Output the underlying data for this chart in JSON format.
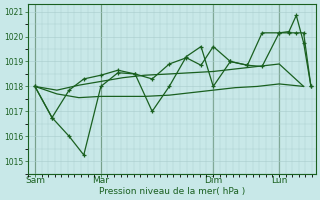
{
  "bg_color": "#c8e8e8",
  "grid_color": "#a8cccc",
  "line_color": "#1a6020",
  "xlabel": "Pression niveau de la mer( hPa )",
  "ylim": [
    1014.5,
    1021.3
  ],
  "yticks": [
    1015,
    1016,
    1017,
    1018,
    1019,
    1020,
    1021
  ],
  "day_labels": [
    "Sam",
    "Mar",
    "Dim",
    "Lun"
  ],
  "day_positions": [
    0,
    0.27,
    0.73,
    1.0
  ],
  "xmin": -0.03,
  "xmax": 1.15,
  "line1_x": [
    0.0,
    0.09,
    0.18,
    0.27,
    0.36,
    0.45,
    0.55,
    0.64,
    0.73,
    0.82,
    0.91,
    1.0,
    1.1
  ],
  "line1_y": [
    1018.0,
    1017.7,
    1017.55,
    1017.6,
    1017.6,
    1017.6,
    1017.65,
    1017.75,
    1017.85,
    1017.95,
    1018.0,
    1018.1,
    1018.0
  ],
  "line2_x": [
    0.0,
    0.09,
    0.18,
    0.27,
    0.36,
    0.45,
    0.55,
    0.64,
    0.73,
    0.82,
    0.91,
    1.0,
    1.1
  ],
  "line2_y": [
    1018.0,
    1017.85,
    1018.05,
    1018.2,
    1018.35,
    1018.45,
    1018.5,
    1018.55,
    1018.6,
    1018.7,
    1018.8,
    1018.9,
    1018.0
  ],
  "series3_x": [
    0.0,
    0.07,
    0.14,
    0.2,
    0.27,
    0.34,
    0.41,
    0.48,
    0.55,
    0.62,
    0.68,
    0.73,
    0.8,
    0.87,
    0.93,
    1.0,
    1.04,
    1.07,
    1.1,
    1.13
  ],
  "series3_y": [
    1018.0,
    1016.75,
    1016.0,
    1015.25,
    1018.0,
    1018.55,
    1018.5,
    1017.0,
    1018.0,
    1019.2,
    1019.6,
    1018.0,
    1019.0,
    1018.85,
    1020.15,
    1020.15,
    1020.2,
    1020.85,
    1019.75,
    1018.0
  ],
  "series4_x": [
    0.0,
    0.07,
    0.14,
    0.2,
    0.27,
    0.34,
    0.41,
    0.48,
    0.55,
    0.62,
    0.68,
    0.73,
    0.8,
    0.87,
    0.93,
    1.0,
    1.04,
    1.07,
    1.1,
    1.13
  ],
  "series4_y": [
    1018.0,
    1016.75,
    1017.85,
    1018.3,
    1018.45,
    1018.65,
    1018.5,
    1018.3,
    1018.9,
    1019.15,
    1018.85,
    1019.6,
    1019.0,
    1018.85,
    1018.8,
    1020.15,
    1020.15,
    1020.15,
    1020.15,
    1018.0
  ]
}
